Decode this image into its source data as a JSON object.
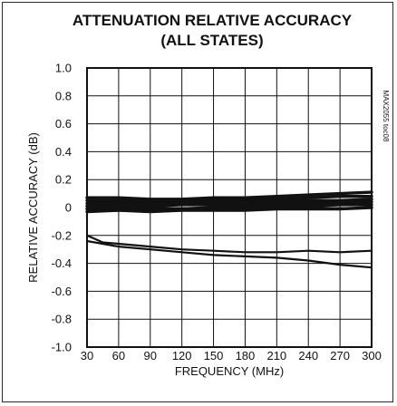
{
  "chart_data": {
    "type": "line",
    "title": "ATTENUATION RELATIVE ACCURACY",
    "subtitle": "(ALL STATES)",
    "xlabel": "FREQUENCY (MHz)",
    "ylabel": "RELATIVE ACCURACY (dB)",
    "side_code": "MAX2055 toc08",
    "xlim": [
      30,
      300
    ],
    "ylim": [
      -1.0,
      1.0
    ],
    "x_ticks": [
      30,
      60,
      90,
      120,
      150,
      180,
      210,
      240,
      270,
      300
    ],
    "x_tick_labels": [
      "30",
      "60",
      "90",
      "120",
      "150",
      "180",
      "210",
      "240",
      "270",
      "300"
    ],
    "y_ticks": [
      1.0,
      0.8,
      0.6,
      0.4,
      0.2,
      0,
      -0.2,
      -0.4,
      -0.6,
      -0.8,
      -1.0
    ],
    "y_tick_labels": [
      "1.0",
      "0.8",
      "0.6",
      "0.4",
      "0.2",
      "0",
      "-0.2",
      "-0.4",
      "-0.6",
      "-0.8",
      "-1.0"
    ],
    "grid": true,
    "legend": "none",
    "line_color": "#111111",
    "series": [
      {
        "x": [
          30,
          60,
          90,
          120,
          150,
          180,
          210,
          240,
          270,
          300
        ],
        "y": [
          0.07,
          0.07,
          0.06,
          0.06,
          0.07,
          0.07,
          0.08,
          0.09,
          0.1,
          0.11
        ]
      },
      {
        "x": [
          30,
          60,
          90,
          120,
          150,
          180,
          210,
          240,
          270,
          300
        ],
        "y": [
          0.05,
          0.05,
          0.05,
          0.05,
          0.05,
          0.06,
          0.06,
          0.07,
          0.08,
          0.08
        ]
      },
      {
        "x": [
          30,
          60,
          90,
          120,
          150,
          180,
          210,
          240,
          270,
          300
        ],
        "y": [
          0.03,
          0.03,
          0.03,
          0.03,
          0.04,
          0.04,
          0.04,
          0.05,
          0.05,
          0.06
        ]
      },
      {
        "x": [
          30,
          60,
          90,
          120,
          150,
          180,
          210,
          240,
          270,
          300
        ],
        "y": [
          0.01,
          0.01,
          0.01,
          0.02,
          0.02,
          0.02,
          0.03,
          0.03,
          0.03,
          0.04
        ]
      },
      {
        "x": [
          30,
          60,
          90,
          120,
          150,
          180,
          210,
          240,
          270,
          300
        ],
        "y": [
          -0.01,
          -0.01,
          -0.01,
          -0.01,
          0.0,
          0.0,
          0.01,
          0.01,
          0.02,
          0.02
        ]
      },
      {
        "x": [
          30,
          60,
          90,
          120,
          150,
          180,
          210,
          240,
          270,
          300
        ],
        "y": [
          -0.03,
          -0.02,
          -0.03,
          -0.02,
          -0.02,
          -0.02,
          -0.01,
          -0.01,
          -0.01,
          0.0
        ]
      },
      {
        "x": [
          30,
          45,
          60,
          90,
          120,
          150,
          180,
          210,
          240,
          270,
          300
        ],
        "y": [
          -0.2,
          -0.25,
          -0.26,
          -0.28,
          -0.3,
          -0.31,
          -0.32,
          -0.32,
          -0.31,
          -0.32,
          -0.31
        ]
      },
      {
        "x": [
          30,
          45,
          60,
          90,
          120,
          150,
          180,
          210,
          240,
          270,
          300
        ],
        "y": [
          -0.24,
          -0.26,
          -0.28,
          -0.3,
          -0.32,
          -0.34,
          -0.35,
          -0.36,
          -0.38,
          -0.41,
          -0.43
        ]
      }
    ]
  }
}
